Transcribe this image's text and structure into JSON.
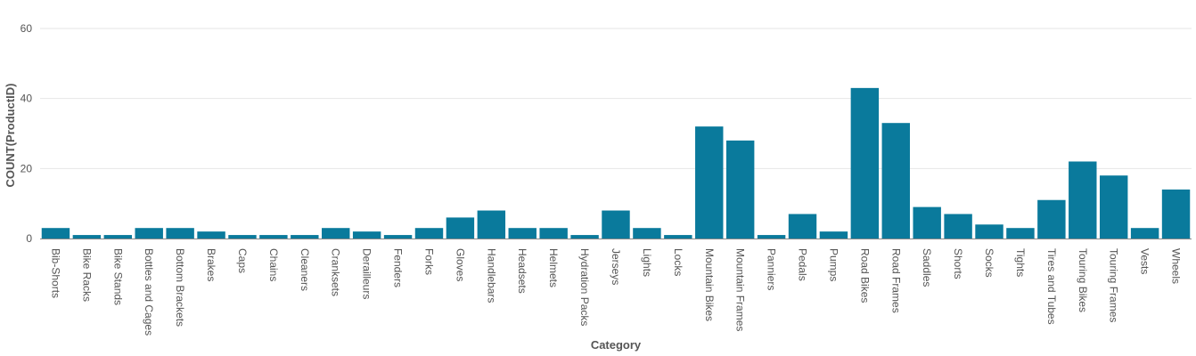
{
  "chart_data": {
    "type": "bar",
    "title": "",
    "xlabel": "Category",
    "ylabel": "COUNT(ProductID)",
    "ylim": [
      0,
      60
    ],
    "yticks": [
      0,
      20,
      40,
      60
    ],
    "grid": true,
    "bar_color": "#0a7a9c",
    "categories": [
      "Bib-Shorts",
      "Bike Racks",
      "Bike Stands",
      "Bottles and Cages",
      "Bottom Brackets",
      "Brakes",
      "Caps",
      "Chains",
      "Cleaners",
      "Cranksets",
      "Derailleurs",
      "Fenders",
      "Forks",
      "Gloves",
      "Handlebars",
      "Headsets",
      "Helmets",
      "Hydration Packs",
      "Jerseys",
      "Lights",
      "Locks",
      "Mountain Bikes",
      "Mountain Frames",
      "Panniers",
      "Pedals",
      "Pumps",
      "Road Bikes",
      "Road Frames",
      "Saddles",
      "Shorts",
      "Socks",
      "Tights",
      "Tires and Tubes",
      "Touring Bikes",
      "Touring Frames",
      "Vests",
      "Wheels"
    ],
    "values": [
      3,
      1,
      1,
      3,
      3,
      2,
      1,
      1,
      1,
      3,
      2,
      1,
      3,
      6,
      8,
      3,
      3,
      1,
      8,
      3,
      1,
      32,
      28,
      1,
      7,
      2,
      43,
      33,
      9,
      7,
      4,
      3,
      11,
      22,
      18,
      3,
      14
    ]
  }
}
